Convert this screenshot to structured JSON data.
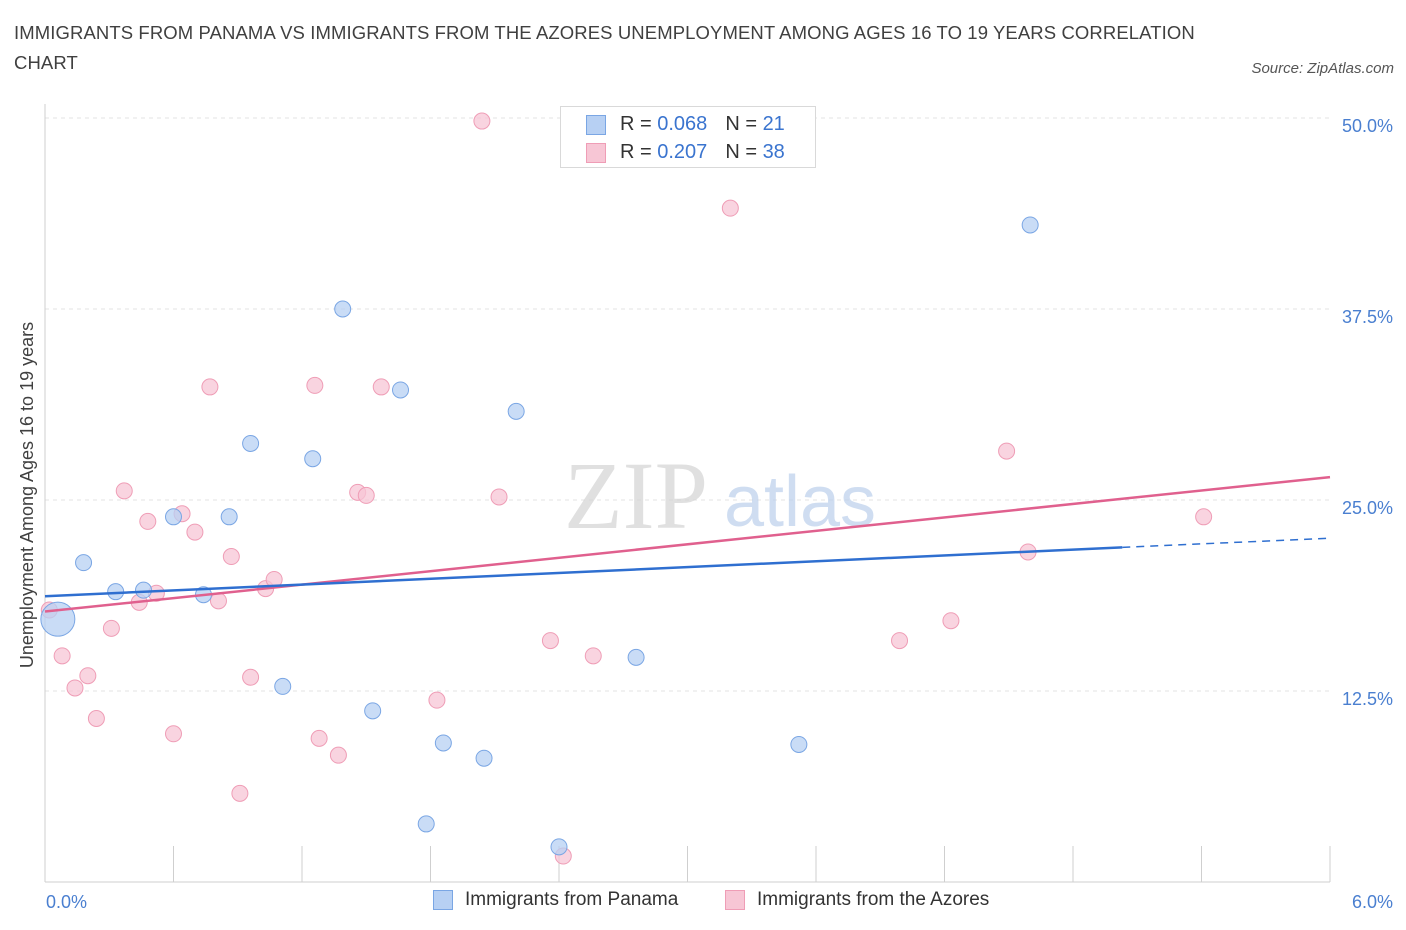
{
  "title": "IMMIGRANTS FROM PANAMA VS IMMIGRANTS FROM THE AZORES UNEMPLOYMENT AMONG AGES 16 TO 19 YEARS CORRELATION CHART",
  "source": "Source: ZipAtlas.com",
  "watermark": {
    "zip": "ZIP",
    "atlas": "atlas"
  },
  "colors": {
    "panama_fill": "#b7d0f3",
    "panama_stroke": "#7aa6e4",
    "panama_line": "#2f6fd0",
    "azores_fill": "#f7c6d5",
    "azores_stroke": "#ef9db6",
    "azores_line": "#e0608e",
    "grid": "#e3e3e3",
    "tick_text": "#4a7fd0"
  },
  "legend": {
    "rows": [
      {
        "r_label": "R = ",
        "r_value": "0.068",
        "n_label": "N = ",
        "n_value": "21"
      },
      {
        "r_label": "R = ",
        "r_value": "0.207",
        "n_label": "N = ",
        "n_value": "38"
      }
    ]
  },
  "bottom_legend": {
    "panama": "Immigrants from Panama",
    "azores": "Immigrants from the Azores"
  },
  "chart_data": {
    "type": "scatter",
    "ylabel": "Unemployment Among Ages 16 to 19 years",
    "x_range": [
      0,
      6
    ],
    "y_range": [
      0,
      50
    ],
    "x_tick_labels": [
      "0.0%",
      "6.0%"
    ],
    "y_ticks": [
      12.5,
      25.0,
      37.5,
      50.0
    ],
    "y_tick_labels": [
      "12.5%",
      "25.0%",
      "37.5%",
      "50.0%"
    ],
    "grid": "horizontal dashed",
    "legend_position": "top-center",
    "series": [
      {
        "name": "Immigrants from Panama",
        "points": [
          {
            "x": 0.06,
            "y": 17.2,
            "big": true
          },
          {
            "x": 0.18,
            "y": 20.9
          },
          {
            "x": 0.33,
            "y": 19.0
          },
          {
            "x": 0.46,
            "y": 19.1
          },
          {
            "x": 0.6,
            "y": 23.9
          },
          {
            "x": 0.74,
            "y": 18.8
          },
          {
            "x": 0.86,
            "y": 23.9
          },
          {
            "x": 0.96,
            "y": 28.7
          },
          {
            "x": 1.11,
            "y": 12.8
          },
          {
            "x": 1.25,
            "y": 27.7
          },
          {
            "x": 1.39,
            "y": 37.5
          },
          {
            "x": 1.53,
            "y": 11.2
          },
          {
            "x": 1.66,
            "y": 32.2
          },
          {
            "x": 1.78,
            "y": 3.8
          },
          {
            "x": 1.86,
            "y": 9.1
          },
          {
            "x": 2.05,
            "y": 8.1
          },
          {
            "x": 2.2,
            "y": 30.8
          },
          {
            "x": 2.4,
            "y": 2.3
          },
          {
            "x": 2.76,
            "y": 14.7
          },
          {
            "x": 3.52,
            "y": 9.0
          },
          {
            "x": 4.6,
            "y": 43.0
          }
        ],
        "trend": {
          "x0": 0.0,
          "y0": 18.7,
          "x1": 5.03,
          "y1": 21.9,
          "dashed_to_x": 6.0,
          "dashed_to_y": 22.5
        }
      },
      {
        "name": "Immigrants from the Azores",
        "points": [
          {
            "x": 0.02,
            "y": 17.8
          },
          {
            "x": 0.08,
            "y": 14.8
          },
          {
            "x": 0.14,
            "y": 12.7
          },
          {
            "x": 0.2,
            "y": 13.5
          },
          {
            "x": 0.24,
            "y": 10.7
          },
          {
            "x": 0.31,
            "y": 16.6
          },
          {
            "x": 0.37,
            "y": 25.6
          },
          {
            "x": 0.44,
            "y": 18.3
          },
          {
            "x": 0.48,
            "y": 23.6
          },
          {
            "x": 0.52,
            "y": 18.9
          },
          {
            "x": 0.6,
            "y": 9.7
          },
          {
            "x": 0.64,
            "y": 24.1
          },
          {
            "x": 0.7,
            "y": 22.9
          },
          {
            "x": 0.77,
            "y": 32.4
          },
          {
            "x": 0.81,
            "y": 18.4
          },
          {
            "x": 0.87,
            "y": 21.3
          },
          {
            "x": 0.91,
            "y": 5.8
          },
          {
            "x": 0.96,
            "y": 13.4
          },
          {
            "x": 1.03,
            "y": 19.2
          },
          {
            "x": 1.07,
            "y": 19.8
          },
          {
            "x": 1.26,
            "y": 32.5
          },
          {
            "x": 1.28,
            "y": 9.4
          },
          {
            "x": 1.37,
            "y": 8.3
          },
          {
            "x": 1.46,
            "y": 25.5
          },
          {
            "x": 1.5,
            "y": 25.3
          },
          {
            "x": 1.57,
            "y": 32.4
          },
          {
            "x": 1.83,
            "y": 11.9
          },
          {
            "x": 2.04,
            "y": 49.8
          },
          {
            "x": 2.12,
            "y": 25.2
          },
          {
            "x": 2.36,
            "y": 15.8
          },
          {
            "x": 2.42,
            "y": 1.7
          },
          {
            "x": 2.56,
            "y": 14.8
          },
          {
            "x": 3.2,
            "y": 44.1
          },
          {
            "x": 3.99,
            "y": 15.8
          },
          {
            "x": 4.23,
            "y": 17.1
          },
          {
            "x": 4.49,
            "y": 28.2
          },
          {
            "x": 4.59,
            "y": 21.6
          },
          {
            "x": 5.41,
            "y": 23.9
          }
        ],
        "trend": {
          "x0": 0.0,
          "y0": 17.7,
          "x1": 6.0,
          "y1": 26.5
        }
      }
    ]
  }
}
